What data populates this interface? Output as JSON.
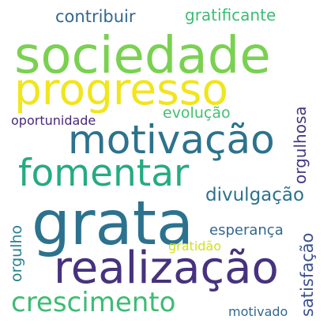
{
  "words": {
    "sociedade": {
      "text": "sociedade",
      "color": "#7ad151"
    },
    "progresso": {
      "text": "progresso",
      "color": "#f1e51d"
    },
    "motivacao": {
      "text": "motivação",
      "color": "#2c728e"
    },
    "fomentar": {
      "text": "fomentar",
      "color": "#25ab82"
    },
    "grata": {
      "text": "grata",
      "color": "#2c728e"
    },
    "realizacao": {
      "text": "realização",
      "color": "#46327e"
    },
    "crescimento": {
      "text": "crescimento",
      "color": "#3dbc74"
    },
    "contribuir": {
      "text": "contribuir",
      "color": "#31688e"
    },
    "gratificante": {
      "text": "gratificante",
      "color": "#3dbc74"
    },
    "oportunidade": {
      "text": "oportunidade",
      "color": "#482878"
    },
    "evolucao": {
      "text": "evolução",
      "color": "#44bf70"
    },
    "orgulhosa": {
      "text": "orgulhosa",
      "color": "#443983"
    },
    "divulgacao": {
      "text": "divulgação",
      "color": "#2c728e"
    },
    "esperanca": {
      "text": "esperança",
      "color": "#31688e"
    },
    "orgulho": {
      "text": "orgulho",
      "color": "#26828e"
    },
    "satisfacao": {
      "text": "satisfação",
      "color": "#3b528b"
    },
    "gratidao": {
      "text": "gratidão",
      "color": "#d0e11c"
    },
    "motivado": {
      "text": "motivado",
      "color": "#31688e"
    }
  }
}
